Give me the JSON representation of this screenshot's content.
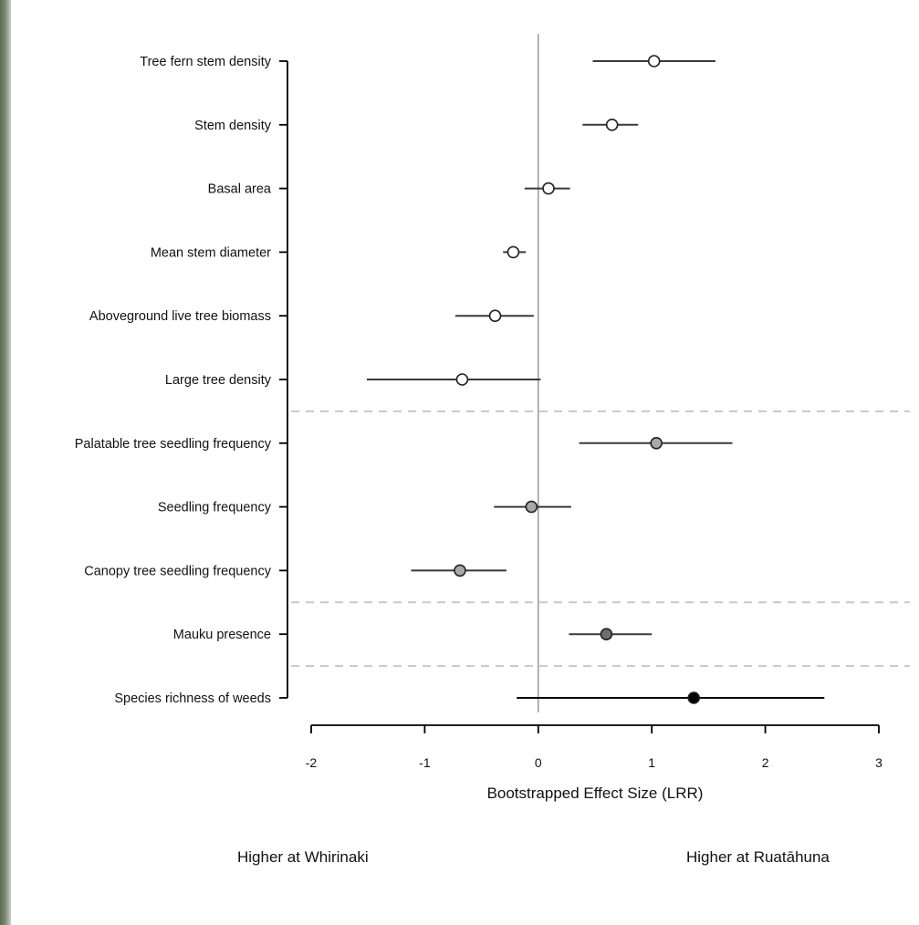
{
  "chart_data": {
    "type": "forest",
    "xlabel": "Bootstrapped Effect Size (LRR)",
    "xlim": [
      -2,
      3
    ],
    "xticks": [
      -2,
      -1,
      0,
      1,
      2,
      3
    ],
    "xtick_labels": [
      "-2",
      "-1",
      "0",
      "1",
      "2",
      "3"
    ],
    "reference_line": 0,
    "grid": false,
    "group_separators_after_rows": [
      6,
      9,
      10
    ],
    "fill_colors": {
      "open": "#ffffff",
      "light-grey": "#a9a9a9",
      "dark-grey": "#6e6e6e",
      "black": "#000000"
    },
    "rows": [
      {
        "label": "Tree fern stem density",
        "estimate": 1.02,
        "ci_low": 0.48,
        "ci_high": 1.56,
        "fill": "open"
      },
      {
        "label": "Stem density",
        "estimate": 0.65,
        "ci_low": 0.39,
        "ci_high": 0.88,
        "fill": "open"
      },
      {
        "label": "Basal area",
        "estimate": 0.09,
        "ci_low": -0.12,
        "ci_high": 0.28,
        "fill": "open"
      },
      {
        "label": "Mean stem diameter",
        "estimate": -0.22,
        "ci_low": -0.31,
        "ci_high": -0.11,
        "fill": "open"
      },
      {
        "label": "Aboveground live tree biomass",
        "estimate": -0.38,
        "ci_low": -0.73,
        "ci_high": -0.04,
        "fill": "open"
      },
      {
        "label": "Large tree density",
        "estimate": -0.67,
        "ci_low": -1.51,
        "ci_high": 0.02,
        "fill": "open"
      },
      {
        "label": "Palatable tree seedling frequency",
        "estimate": 1.04,
        "ci_low": 0.36,
        "ci_high": 1.71,
        "fill": "light-grey"
      },
      {
        "label": "Seedling frequency",
        "estimate": -0.06,
        "ci_low": -0.39,
        "ci_high": 0.29,
        "fill": "light-grey"
      },
      {
        "label": "Canopy tree seedling frequency",
        "estimate": -0.69,
        "ci_low": -1.12,
        "ci_high": -0.28,
        "fill": "light-grey"
      },
      {
        "label": "Mauku presence",
        "estimate": 0.6,
        "ci_low": 0.27,
        "ci_high": 1.0,
        "fill": "dark-grey"
      },
      {
        "label": "Species richness of weeds",
        "estimate": 1.37,
        "ci_low": -0.19,
        "ci_high": 2.52,
        "fill": "black"
      }
    ]
  },
  "direction_labels": {
    "left": "Higher at Whirinaki",
    "right": "Higher at Ruatāhuna"
  }
}
